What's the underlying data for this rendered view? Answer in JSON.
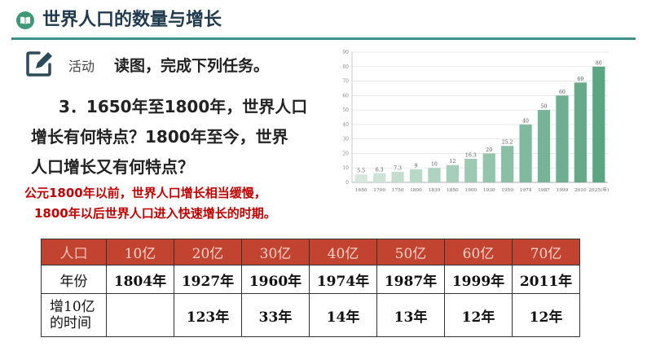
{
  "header": {
    "title": "世界人口的数量与增长"
  },
  "activity": {
    "label": "活动",
    "title": "读图，完成下列任务。"
  },
  "question": {
    "line1": "3．1650年至1800年，世界人口",
    "line2": "增长有何特点？1800年至今，世界",
    "line3": "人口增长又有何特点？"
  },
  "answer": {
    "line1": "公元1800年以前，世界人口增长相当缓慢，",
    "line2": "1800年以后世界人口进入快速增长的时期。"
  },
  "chart_data": {
    "type": "bar",
    "categories": [
      "1650",
      "1700",
      "1750",
      "1800",
      "1830",
      "1850",
      "1900",
      "1930",
      "1950",
      "1974",
      "1987",
      "1999",
      "2010",
      "2025(年)"
    ],
    "values": [
      5.5,
      6.3,
      7.3,
      9,
      10,
      12,
      16.3,
      20,
      25.2,
      40,
      50,
      60,
      69,
      80
    ],
    "value_labels": [
      "5.5",
      "6.3",
      "7.3",
      "9",
      "10",
      "12",
      "16.3",
      "20",
      "25.2",
      "40",
      "50",
      "60",
      "69",
      "80"
    ],
    "yticks": [
      "0",
      "10",
      "20",
      "30",
      "40",
      "50",
      "60",
      "70",
      "80",
      "90"
    ],
    "ylim": [
      0,
      90
    ],
    "grid": true,
    "colors": {
      "bar_light": "#d6e8dd",
      "bar_dark": "#5aa582"
    }
  },
  "table": {
    "header": [
      "人口",
      "10亿",
      "20亿",
      "30亿",
      "40亿",
      "50亿",
      "60亿",
      "70亿"
    ],
    "row_year": {
      "label": "年份",
      "values": [
        "1804年",
        "1927年",
        "1960年",
        "1974年",
        "1987年",
        "1999年",
        "2011年"
      ]
    },
    "row_increase": {
      "label_line1": "增10亿",
      "label_line2": "的时间",
      "values": [
        "",
        "123年",
        "33年",
        "14年",
        "13年",
        "12年",
        "12年"
      ]
    }
  }
}
